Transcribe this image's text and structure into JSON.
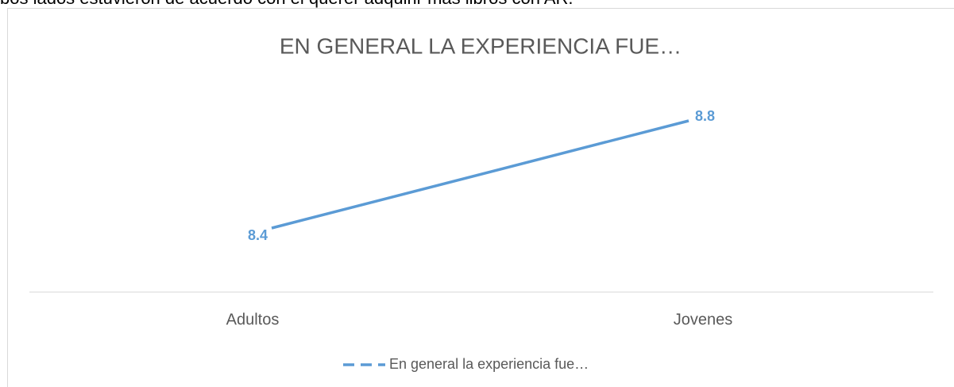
{
  "doc_text": "bos lados estuvieron de acuerdo con el querer adquirir más libros con AR.",
  "chart_data": {
    "type": "line",
    "title": "EN GENERAL LA EXPERIENCIA FUE…",
    "categories": [
      "Adultos",
      "Jovenes"
    ],
    "series": [
      {
        "name": "En general la experiencia fue…",
        "color": "#5b9bd5",
        "values": [
          8.4,
          8.8
        ]
      }
    ]
  }
}
